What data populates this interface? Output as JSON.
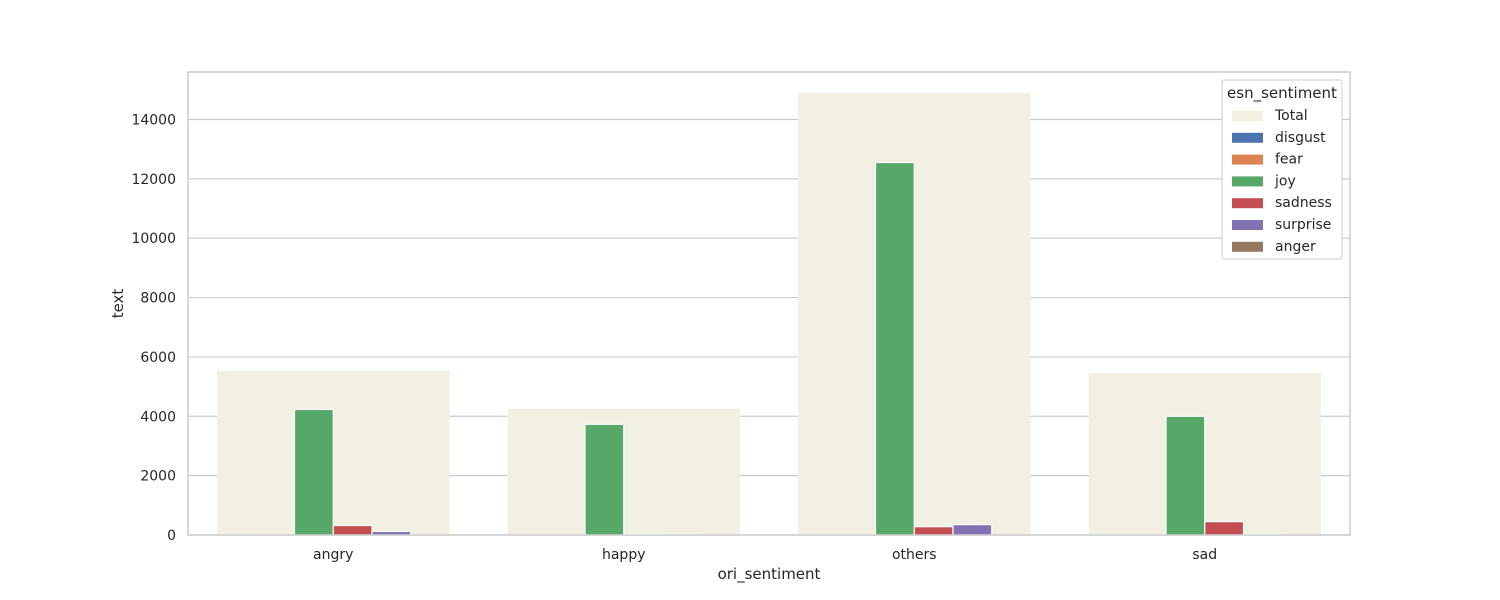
{
  "chart_data": {
    "type": "bar",
    "title": "",
    "xlabel": "ori_sentiment",
    "ylabel": "text",
    "categories": [
      "angry",
      "happy",
      "others",
      "sad"
    ],
    "ylim": [
      0,
      15600
    ],
    "yticks": [
      0,
      2000,
      4000,
      6000,
      8000,
      10000,
      12000,
      14000
    ],
    "grid": true,
    "legend": {
      "title": "esn_sentiment",
      "placement": "top-right"
    },
    "total": {
      "name": "Total",
      "color": "#f2efe3",
      "values": [
        5530,
        4260,
        14900,
        5460
      ]
    },
    "series": [
      {
        "name": "disgust",
        "color": "#4c72b0",
        "values": [
          10,
          5,
          10,
          10
        ]
      },
      {
        "name": "fear",
        "color": "#dd8452",
        "values": [
          5,
          5,
          10,
          10
        ]
      },
      {
        "name": "joy",
        "color": "#55a868",
        "values": [
          4230,
          3730,
          12550,
          4000
        ]
      },
      {
        "name": "sadness",
        "color": "#c44e52",
        "values": [
          320,
          30,
          280,
          450
        ]
      },
      {
        "name": "surprise",
        "color": "#8172b3",
        "values": [
          120,
          20,
          350,
          30
        ]
      },
      {
        "name": "anger",
        "color": "#937860",
        "values": [
          0,
          0,
          0,
          0
        ]
      }
    ]
  }
}
